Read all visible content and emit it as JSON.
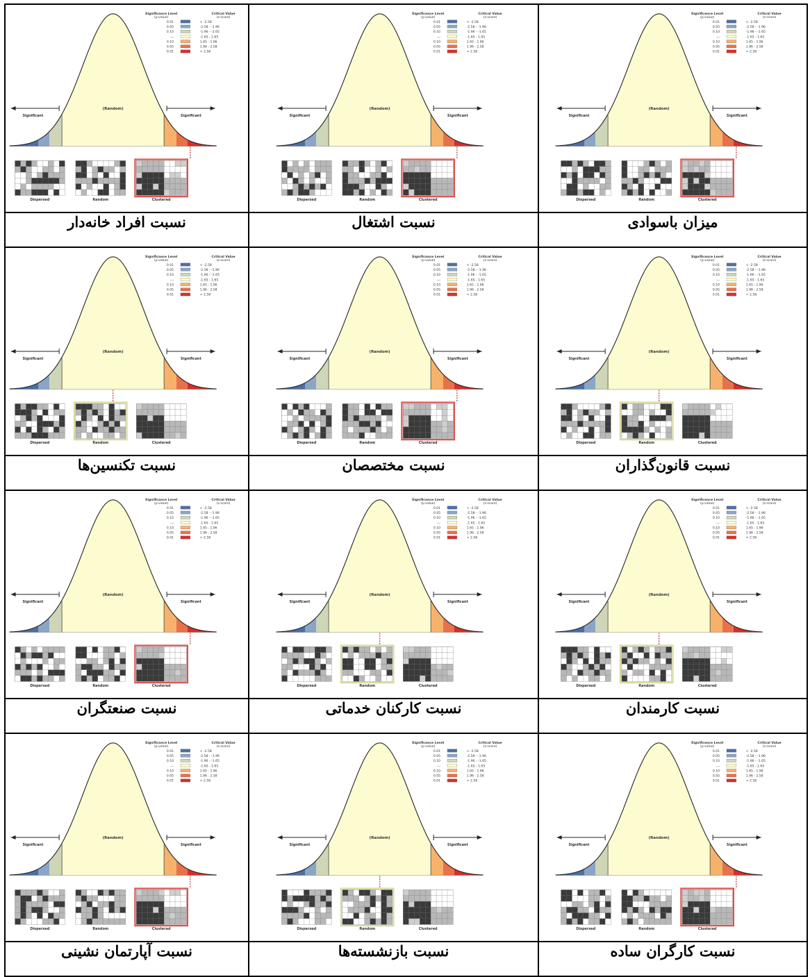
{
  "figure_text": {
    "significance_header": "Significance Level",
    "p_value_header": "(p-value)",
    "critical_header": "Critical Value",
    "z_score_header": "(z-score)",
    "p_values": [
      "0.01",
      "0.05",
      "0.10",
      "---",
      "0.10",
      "0.05",
      "0.01"
    ],
    "z_ranges": [
      "< -2.58",
      "-2.58 - -1.96",
      "-1.96 - -1.65",
      "-1.65 - 1.65",
      "1.65 - 1.96",
      "1.96 - 2.58",
      "> 2.58"
    ],
    "significant": "Significant",
    "random_center": "(Random)",
    "pattern_labels": [
      "Dispersed",
      "Random",
      "Clustered"
    ],
    "legend_colors": [
      "#4c6fa5",
      "#8aa5c6",
      "#cfd6b8",
      "#fdfcd0",
      "#f6b26b",
      "#e8714a",
      "#d3302b"
    ]
  },
  "rows": [
    [
      {
        "caption": "نسبت افراد خانه‌دار",
        "result": "Clustered"
      },
      {
        "caption": "نسبت اشتغال",
        "result": "Clustered"
      },
      {
        "caption": "میزان باسوادی",
        "result": "Clustered"
      }
    ],
    [
      {
        "caption": "نسبت تکنسین‌ها",
        "result": "Random"
      },
      {
        "caption": "نسبت مختصصان",
        "result": "Clustered"
      },
      {
        "caption": "نسبت قانون‌گذاران",
        "result": "Random"
      }
    ],
    [
      {
        "caption": "نسبت صنعتگران",
        "result": "Clustered"
      },
      {
        "caption": "نسبت کارکنان خدماتی",
        "result": "Random"
      },
      {
        "caption": "نسبت کارمندان",
        "result": "Random"
      }
    ],
    [
      {
        "caption": "نسبت آپارتمان نشینی",
        "result": "Clustered"
      },
      {
        "caption": "نسبت بازنشسته‌ها",
        "result": "Random"
      },
      {
        "caption": "نسبت کارگران ساده",
        "result": "Clustered"
      }
    ]
  ]
}
